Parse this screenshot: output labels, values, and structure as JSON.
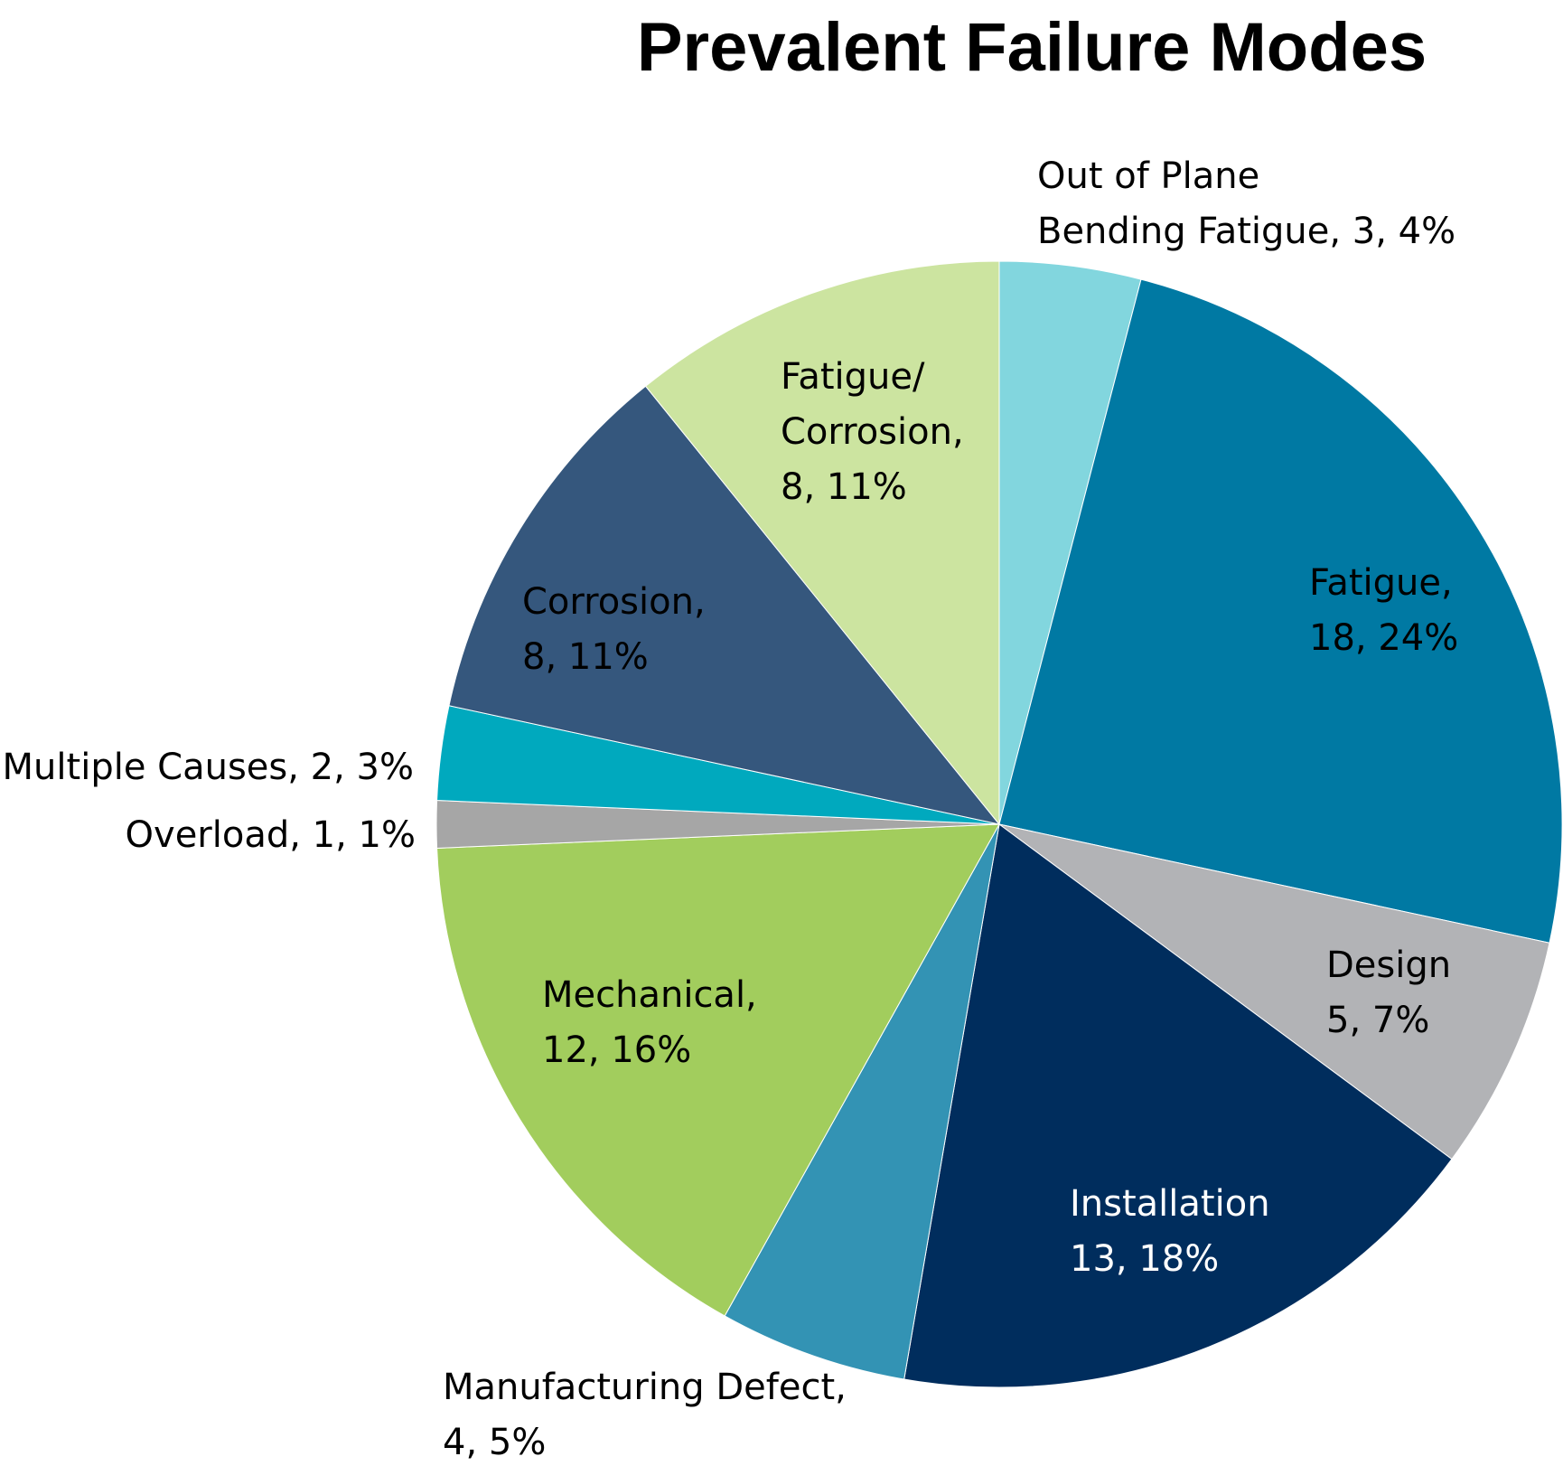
{
  "chart_data": {
    "type": "pie",
    "title": "Prevalent Failure Modes",
    "start_angle_deg": 0,
    "direction": "clockwise",
    "legend": "none",
    "slices": [
      {
        "name": "Out of Plane Bending Fatigue",
        "value": 3,
        "percent": "4%",
        "color": "#82D6DE",
        "label_lines": [
          "Out of Plane",
          "Bending Fatigue, 3, 4%"
        ],
        "label_color": "#000000"
      },
      {
        "name": "Fatigue",
        "value": 18,
        "percent": "24%",
        "color": "#0079A3",
        "label_lines": [
          "Fatigue,",
          "18, 24%"
        ],
        "label_color": "#000000"
      },
      {
        "name": "Design",
        "value": 5,
        "percent": "7%",
        "color": "#B2B3B6",
        "label_lines": [
          "Design",
          "5, 7%"
        ],
        "label_color": "#000000"
      },
      {
        "name": "Installation",
        "value": 13,
        "percent": "18%",
        "color": "#002D5D",
        "label_lines": [
          "Installation",
          "13, 18%"
        ],
        "label_color": "#FFFFFF"
      },
      {
        "name": "Manufacturing Defect",
        "value": 4,
        "percent": "5%",
        "color": "#3393B4",
        "label_lines": [
          "Manufacturing Defect,",
          "4, 5%"
        ],
        "label_color": "#000000"
      },
      {
        "name": "Mechanical",
        "value": 12,
        "percent": "16%",
        "color": "#A2CD5D",
        "label_lines": [
          "Mechanical,",
          "12, 16%"
        ],
        "label_color": "#000000"
      },
      {
        "name": "Overload",
        "value": 1,
        "percent": "1%",
        "color": "#A6A6A6",
        "label_lines": [
          "Overload, 1, 1%"
        ],
        "label_color": "#000000"
      },
      {
        "name": "Multiple Causes",
        "value": 2,
        "percent": "3%",
        "color": "#00A9BE",
        "label_lines": [
          "Multiple Causes, 2, 3%"
        ],
        "label_color": "#000000"
      },
      {
        "name": "Corrosion",
        "value": 8,
        "percent": "11%",
        "color": "#35577D",
        "label_lines": [
          "Corrosion,",
          "8, 11%"
        ],
        "label_color": "#000000"
      },
      {
        "name": "Fatigue/ Corrosion",
        "value": 8,
        "percent": "11%",
        "color": "#CCE4A0",
        "label_lines": [
          "Fatigue/",
          "Corrosion,",
          "8, 11%"
        ],
        "label_color": "#000000"
      }
    ]
  }
}
